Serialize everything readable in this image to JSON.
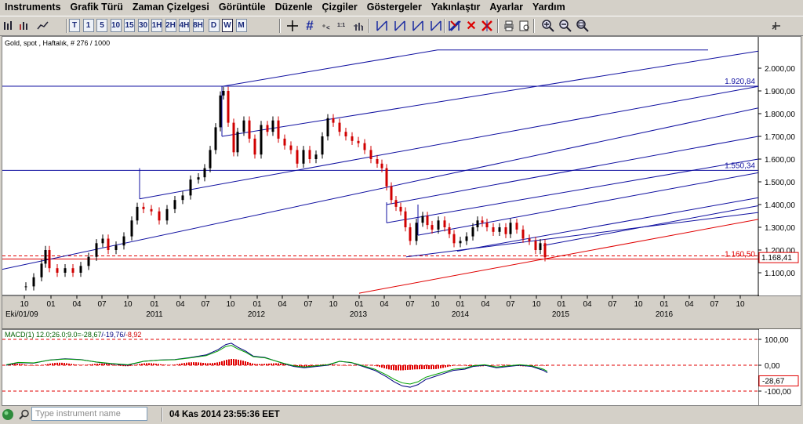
{
  "menu": [
    "Instruments",
    "Grafik Türü",
    "Zaman Çizelgesi",
    "Görüntüle",
    "Düzenle",
    "Çizgiler",
    "Göstergeler",
    "Yakınlaştır",
    "Ayarlar",
    "Yardım"
  ],
  "toolbar": {
    "timeframes": [
      "T",
      "1",
      "5",
      "10",
      "15",
      "30",
      "1H",
      "2H",
      "4H",
      "8H",
      "D",
      "W",
      "M"
    ],
    "selected_timeframe": "W"
  },
  "chart": {
    "header": "Gold, spot , Haftalık, # 276 / 1000",
    "y_ticks": [
      "2.000,00",
      "1.900,00",
      "1.800,00",
      "1.700,00",
      "1.600,00",
      "1.500,00",
      "1.400,00",
      "1.300,00",
      "1.200,00",
      "1.100,00"
    ],
    "x_month_ticks": [
      "10",
      "01",
      "04",
      "07",
      "10",
      "01",
      "04",
      "07",
      "10",
      "01",
      "04",
      "07",
      "10",
      "01",
      "04",
      "07",
      "10",
      "01",
      "04",
      "07",
      "10",
      "01",
      "04",
      "07",
      "10",
      "01",
      "04",
      "07",
      "10"
    ],
    "x_year_labels": [
      "Eki/01/09",
      "2011",
      "2012",
      "2013",
      "2014",
      "2015",
      "2016"
    ],
    "levels": [
      {
        "label": "1.920,84",
        "value": 1920.84
      },
      {
        "label": "1.550,34",
        "value": 1550.34
      },
      {
        "label": "1.160,50",
        "value": 1160.5
      }
    ],
    "price_tag": "1.168,41",
    "colors": {
      "channel": "#1010a0",
      "support": "#e00000",
      "candle_up": "#000000",
      "candle_down": "#e00000"
    }
  },
  "macd": {
    "label_prefix": "MACD(1) 12.0;26.0;9.0=",
    "value1": "-28,67",
    "value2": "/-19,76/",
    "value3": "-8,92",
    "y_ticks": [
      "100,00",
      "0,00",
      "-100,00"
    ],
    "price_tag": "-28,67"
  },
  "status": {
    "search_placeholder": "Type instrument name",
    "datetime": "04 Kas 2014 23:55:36 EET"
  }
}
